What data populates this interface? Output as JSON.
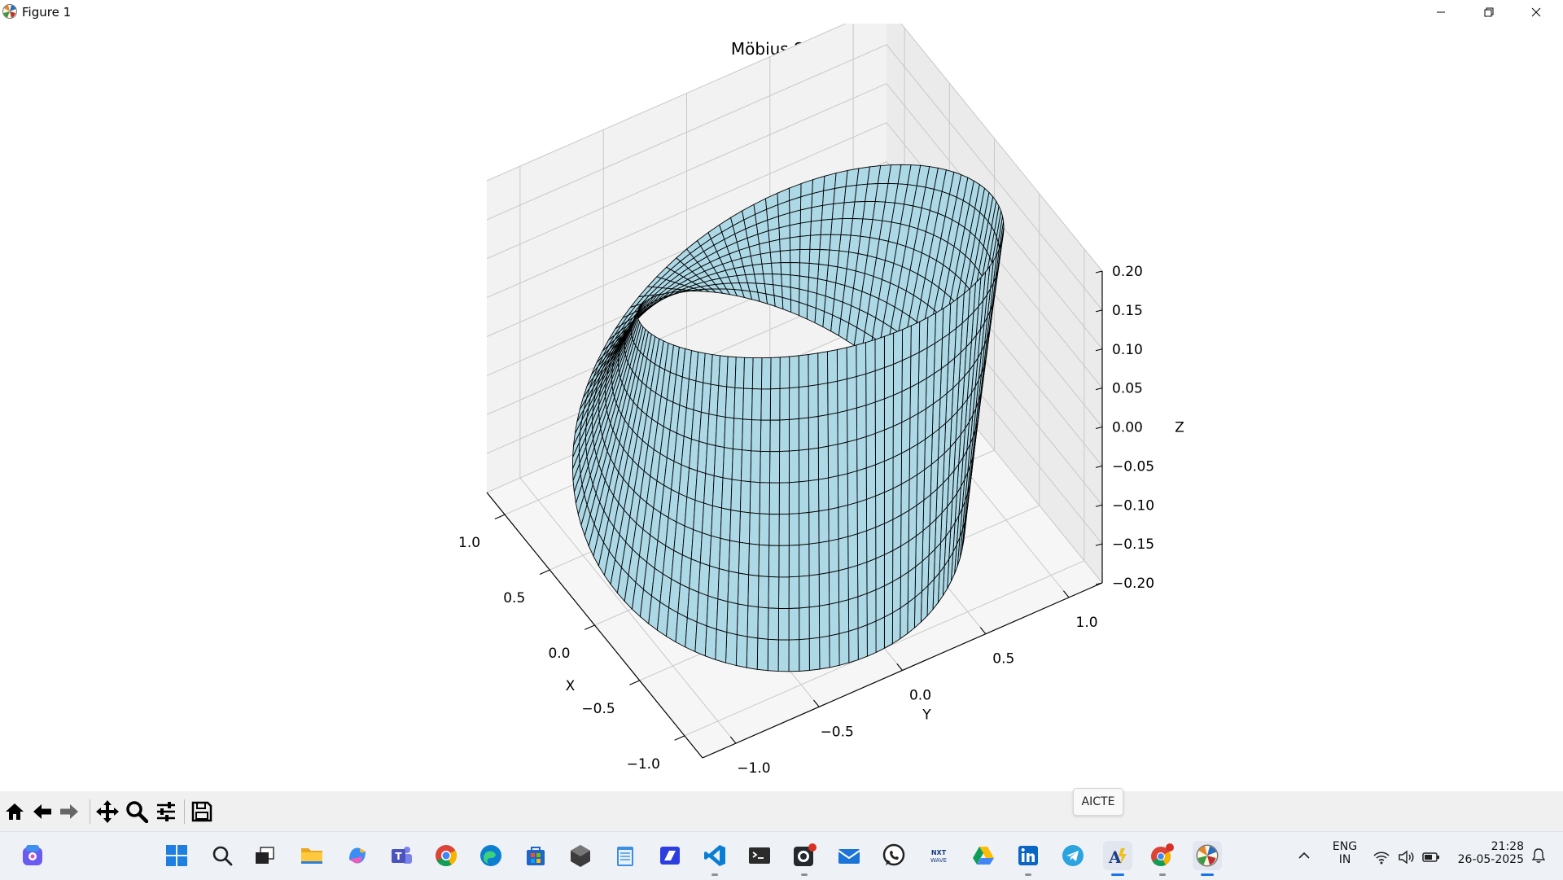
{
  "window": {
    "title": "Figure 1",
    "controls": [
      "minimize-icon",
      "restore-icon",
      "close-icon"
    ]
  },
  "chart_data": {
    "type": "surface",
    "title": "Möbius Strip",
    "xlabel": "X",
    "ylabel": "Y",
    "zlabel": "Z",
    "xlim": [
      -1.2,
      1.2
    ],
    "ylim": [
      -1.2,
      1.2
    ],
    "zlim": [
      -0.2,
      0.2
    ],
    "x_ticks": [
      1.0,
      0.5,
      0.0,
      -0.5,
      -1.0
    ],
    "x_tick_labels": [
      "1.0",
      "0.5",
      "0.0",
      "−0.5",
      "−1.0"
    ],
    "y_ticks": [
      1.0,
      0.5,
      0.0,
      -0.5,
      -1.0
    ],
    "y_tick_labels": [
      "1.0",
      "0.5",
      "0.0",
      "−0.5",
      "−1.0"
    ],
    "z_ticks": [
      0.2,
      0.15,
      0.1,
      0.05,
      0.0,
      -0.05,
      -0.1,
      -0.15,
      -0.2
    ],
    "z_tick_labels": [
      "0.20",
      "0.15",
      "0.10",
      "0.05",
      "0.00",
      "−0.05",
      "−0.10",
      "−0.15",
      "−0.20"
    ],
    "surface": {
      "equation": "x=(1+v·cos(u/2))·cos(u), y=(1+v·cos(u/2))·sin(u), z=v·sin(u/2)",
      "u_range": [
        0,
        6.2832
      ],
      "v_range": [
        -0.2,
        0.2
      ],
      "face_color": "#add8e6",
      "edge_color": "#000000"
    },
    "grid": true
  },
  "toolbar": {
    "buttons": [
      "home-icon",
      "back-icon",
      "forward-icon",
      "pan-icon",
      "zoom-icon",
      "configure-subplots-icon",
      "save-icon"
    ]
  },
  "tooltip": {
    "text": "AICTE"
  },
  "taskbar": {
    "apps": [
      "copilot-app-icon",
      "start-icon",
      "search-icon",
      "task-view-icon",
      "file-explorer-icon",
      "copilot-icon",
      "teams-icon",
      "chrome-icon",
      "edge-icon",
      "store-icon",
      "unity-icon",
      "notepad-icon",
      "powerautomate-icon",
      "vscode-icon",
      "terminal-icon",
      "github-icon",
      "mail-icon",
      "whatsapp-icon",
      "nxtwave-icon",
      "google-drive-icon",
      "linkedin-icon",
      "telegram-icon",
      "aicte-icon",
      "chrome-profile-icon",
      "matplotlib-icon"
    ],
    "language": "ENG",
    "region": "IN",
    "time": "21:28",
    "date": "26-05-2025"
  }
}
